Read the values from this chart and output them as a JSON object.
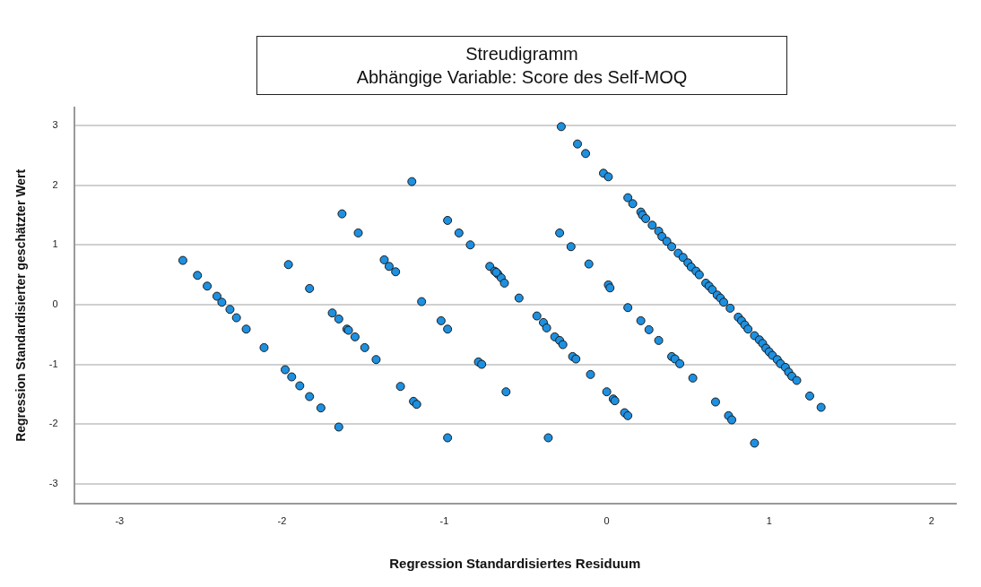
{
  "chart_data": {
    "type": "scatter",
    "title": "Streudigramm\nAbhängige Variable: Score des Self-MOQ",
    "xlabel": "Regression Standardisiertes Residuum",
    "ylabel": "Regression Standardisierter geschätzter Wert",
    "xlim": [
      -3.28,
      2.15
    ],
    "ylim": [
      -3.33,
      3.3
    ],
    "xticks": [
      -3,
      -2,
      -1,
      0,
      1,
      2
    ],
    "yticks": [
      -3,
      -2,
      -1,
      0,
      1,
      2,
      3
    ],
    "grid": "y",
    "legend": false,
    "marker": "circle",
    "series": [
      {
        "color": "#1e90e0",
        "x": [
          -2.61,
          -2.52,
          -2.46,
          -2.4,
          -2.37,
          -2.32,
          -2.28,
          -2.22,
          -2.11,
          -1.96,
          -1.83,
          -1.63,
          -1.53,
          -1.69,
          -1.65,
          -1.6,
          -1.59,
          -1.55,
          -1.49,
          -1.42,
          -1.37,
          -1.34,
          -1.3,
          -1.2,
          -1.14,
          -1.02,
          -0.98,
          -0.98,
          -0.91,
          -0.84,
          -0.72,
          -0.69,
          -0.67,
          -0.65,
          -1.98,
          -1.94,
          -1.89,
          -1.83,
          -1.76,
          -1.65,
          -1.27,
          -1.19,
          -1.17,
          -0.98,
          -0.79,
          -0.77,
          -0.28,
          -0.18,
          -0.13,
          -0.02,
          0.01,
          0.13,
          0.16,
          0.21,
          0.22,
          0.24,
          0.28,
          0.32,
          0.34,
          0.37,
          0.4,
          0.44,
          0.47,
          0.5,
          0.52,
          0.55,
          0.57,
          0.61,
          0.63,
          0.65,
          0.68,
          0.7,
          0.72,
          0.76,
          0.81,
          0.83,
          0.85,
          0.87,
          0.91,
          0.94,
          0.96,
          0.98,
          1.0,
          1.02,
          1.05,
          1.07,
          1.1,
          1.12,
          1.14,
          1.17,
          1.25,
          1.32,
          -0.29,
          -0.22,
          -0.11,
          0.01,
          0.02,
          0.13,
          0.21,
          0.26,
          0.32,
          0.4,
          0.42,
          0.45,
          0.53,
          0.67,
          0.75,
          0.77,
          0.91,
          -0.68,
          -0.63,
          -0.54,
          -0.43,
          -0.39,
          -0.37,
          -0.32,
          -0.29,
          -0.27,
          -0.21,
          -0.19,
          -0.1,
          0.0,
          0.04,
          0.05,
          0.11,
          0.13,
          -0.62,
          -0.36
        ],
        "values": [
          0.74,
          0.49,
          0.31,
          0.14,
          0.04,
          -0.08,
          -0.22,
          -0.41,
          -0.72,
          0.67,
          0.27,
          1.52,
          1.2,
          -0.14,
          -0.24,
          -0.41,
          -0.43,
          -0.54,
          -0.72,
          -0.92,
          0.75,
          0.64,
          0.55,
          2.06,
          0.05,
          -0.27,
          -0.41,
          1.41,
          1.2,
          1.0,
          0.64,
          0.56,
          0.51,
          0.45,
          -1.09,
          -1.21,
          -1.36,
          -1.54,
          -1.73,
          -2.05,
          -1.37,
          -1.62,
          -1.67,
          -2.23,
          -0.96,
          -1.0,
          2.98,
          2.69,
          2.53,
          2.2,
          2.14,
          1.79,
          1.69,
          1.55,
          1.5,
          1.44,
          1.33,
          1.23,
          1.14,
          1.06,
          0.97,
          0.86,
          0.79,
          0.7,
          0.63,
          0.56,
          0.5,
          0.36,
          0.31,
          0.25,
          0.16,
          0.11,
          0.04,
          -0.06,
          -0.21,
          -0.27,
          -0.34,
          -0.41,
          -0.52,
          -0.59,
          -0.65,
          -0.73,
          -0.79,
          -0.85,
          -0.92,
          -0.99,
          -1.05,
          -1.13,
          -1.2,
          -1.27,
          -1.53,
          -1.72,
          1.2,
          0.97,
          0.68,
          0.33,
          0.28,
          -0.05,
          -0.27,
          -0.42,
          -0.6,
          -0.87,
          -0.91,
          -0.99,
          -1.23,
          -1.63,
          -1.86,
          -1.93,
          -2.32,
          0.54,
          0.36,
          0.11,
          -0.19,
          -0.3,
          -0.39,
          -0.54,
          -0.6,
          -0.67,
          -0.87,
          -0.91,
          -1.17,
          -1.46,
          -1.58,
          -1.61,
          -1.81,
          -1.86,
          -1.46,
          -2.23
        ]
      }
    ]
  }
}
